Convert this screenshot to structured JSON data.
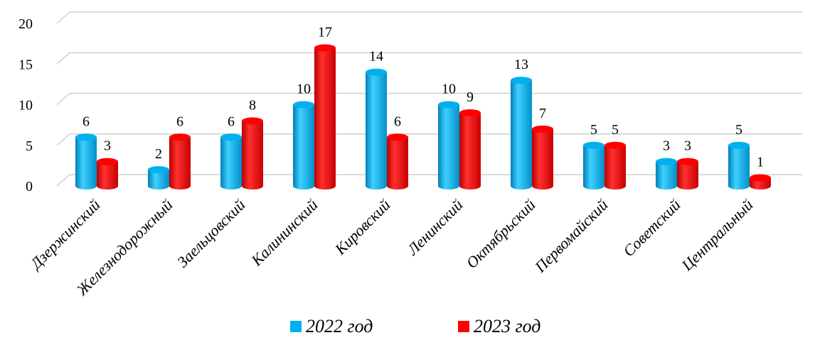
{
  "chart_data": {
    "type": "bar",
    "title": "",
    "xlabel": "",
    "ylabel": "",
    "ylim": [
      0,
      20
    ],
    "yticks": [
      0,
      5,
      10,
      15,
      20
    ],
    "grid": true,
    "legend_position": "bottom",
    "categories": [
      "Дзержинский",
      "Железнодорожный",
      "Заельцовский",
      "Калининский",
      "Кировский",
      "Ленинский",
      "Октябрьский",
      "Первомайский",
      "Советский",
      "Центральный"
    ],
    "series": [
      {
        "name": "2022 год",
        "color": "#00B0F0",
        "values": [
          6,
          2,
          6,
          10,
          14,
          10,
          13,
          5,
          3,
          5
        ]
      },
      {
        "name": "2023 год",
        "color": "#FF0000",
        "values": [
          3,
          6,
          8,
          17,
          6,
          9,
          7,
          5,
          3,
          1
        ]
      }
    ]
  }
}
